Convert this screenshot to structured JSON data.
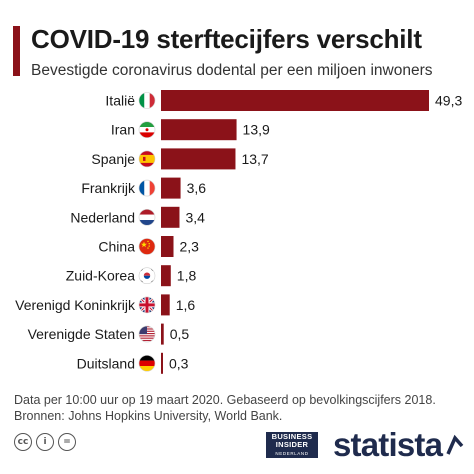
{
  "title": "COVID-19 sterftecijfers verschilt",
  "subtitle": "Bevestigde coronavirus dodental per een miljoen inwoners",
  "footer": {
    "line1": "Data per 10:00 uur op 19 maart 2020. Gebaseerd op bevolkingscijfers 2018.",
    "line2": "Bronnen: Johns Hopkins University, World Bank."
  },
  "logos": {
    "business_insider_line1": "BUSINESS",
    "business_insider_line2": "INSIDER",
    "business_insider_line3": "NEDERLAND",
    "statista": "statista",
    "cc_labels": [
      "cc",
      "i",
      "="
    ]
  },
  "colors": {
    "bar": "#8b1219",
    "accent": "#8b1219",
    "text": "#1a1a1a",
    "brand": "#1f2b4d"
  },
  "chart_data": {
    "type": "bar",
    "orientation": "horizontal",
    "title": "COVID-19 sterftecijfers verschilt",
    "subtitle": "Bevestigde coronavirus dodental per een miljoen inwoners",
    "categories": [
      "Italië",
      "Iran",
      "Spanje",
      "Frankrijk",
      "Nederland",
      "China",
      "Zuid-Korea",
      "Verenigd Koninkrijk",
      "Verenigde Staten",
      "Duitsland"
    ],
    "flags": [
      "italy-flag-icon",
      "iran-flag-icon",
      "spain-flag-icon",
      "france-flag-icon",
      "netherlands-flag-icon",
      "china-flag-icon",
      "south-korea-flag-icon",
      "uk-flag-icon",
      "usa-flag-icon",
      "germany-flag-icon"
    ],
    "values": [
      49.3,
      13.9,
      13.7,
      3.6,
      3.4,
      2.3,
      1.8,
      1.6,
      0.5,
      0.3
    ],
    "value_labels": [
      "49,3",
      "13,9",
      "13,7",
      "3,6",
      "3,4",
      "2,3",
      "1,8",
      "1,6",
      "0,5",
      "0,3"
    ],
    "xlim": [
      0,
      49.3
    ],
    "grid": false,
    "legend": "none"
  }
}
